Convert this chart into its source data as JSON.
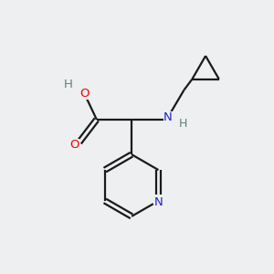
{
  "background_color": "#eeeff0",
  "atom_colors": {
    "C": "#1a1a1a",
    "H": "#5f8080",
    "O": "#ee0000",
    "N": "#2020cc"
  },
  "figsize": [
    3.0,
    3.0
  ],
  "dpi": 100
}
